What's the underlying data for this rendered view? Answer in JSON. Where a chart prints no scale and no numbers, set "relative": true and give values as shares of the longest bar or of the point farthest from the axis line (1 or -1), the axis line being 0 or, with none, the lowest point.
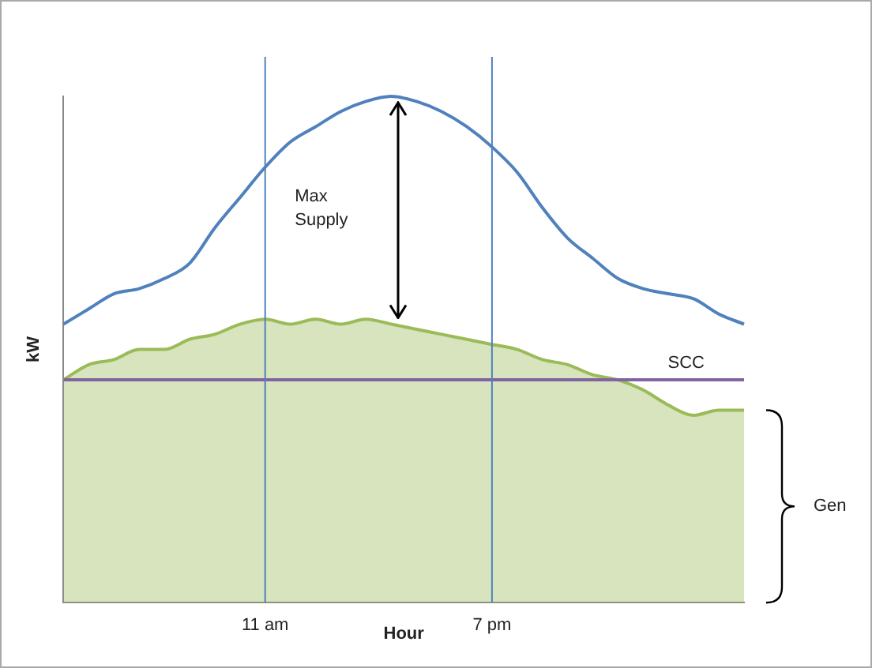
{
  "chart_data": {
    "type": "line",
    "relative": true,
    "xlabel": "Hour",
    "ylabel": "kW",
    "categories": [
      null,
      null,
      null,
      null,
      null,
      null,
      null,
      null,
      "11 am",
      null,
      null,
      null,
      null,
      null,
      null,
      null,
      null,
      "7 pm",
      null,
      null,
      null,
      null,
      null,
      null,
      null,
      null,
      null,
      null
    ],
    "series": [
      {
        "type": "line",
        "color": "#4f81bd",
        "values": [
          0.55,
          0.58,
          0.61,
          0.62,
          0.64,
          0.67,
          0.74,
          0.8,
          0.86,
          0.91,
          0.94,
          0.97,
          0.99,
          1,
          0.99,
          0.97,
          0.94,
          0.9,
          0.85,
          0.78,
          0.72,
          0.68,
          0.64,
          0.62,
          0.61,
          0.6,
          0.57,
          0.55
        ]
      },
      {
        "type": "area",
        "color": "#9bbb59",
        "values": [
          0.44,
          0.47,
          0.48,
          0.5,
          0.5,
          0.52,
          0.53,
          0.55,
          0.56,
          0.55,
          0.56,
          0.55,
          0.56,
          0.55,
          0.54,
          0.53,
          0.52,
          0.51,
          0.5,
          0.48,
          0.47,
          0.45,
          0.44,
          0.42,
          0.39,
          0.37,
          0.38,
          0.38
        ]
      }
    ],
    "ref_lines": [
      {
        "axis": "y",
        "value": 0.44,
        "label": "SCC",
        "color": "#8064a2"
      },
      {
        "axis": "x",
        "value": "11 am",
        "color": "#4f81bd"
      },
      {
        "axis": "x",
        "value": "7 pm",
        "color": "#4f81bd"
      }
    ],
    "annotations": [
      "Max Supply",
      "Gen"
    ],
    "grid": false,
    "legend": false,
    "marker": "none"
  }
}
